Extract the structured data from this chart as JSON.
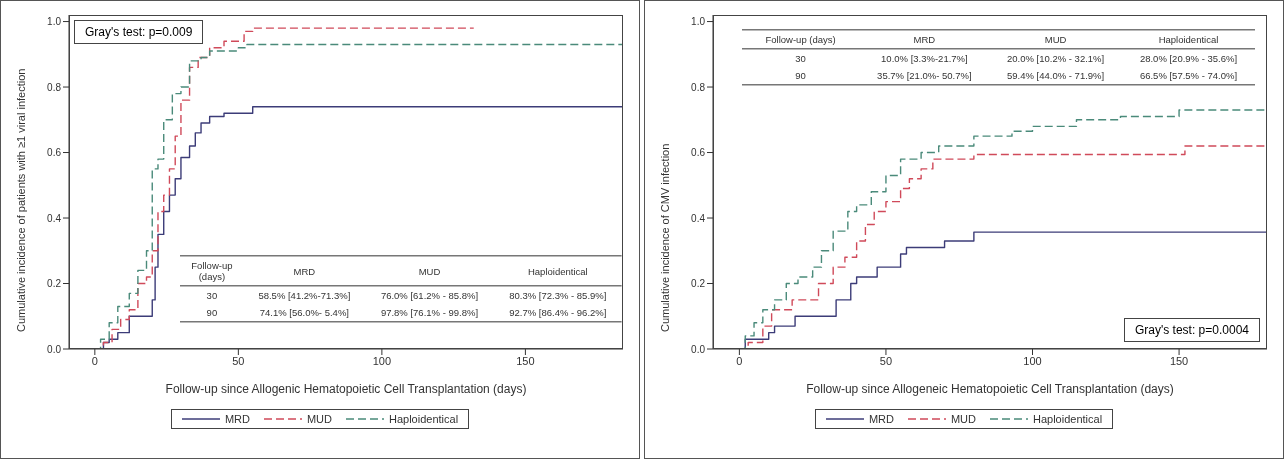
{
  "chart_data": [
    {
      "type": "step",
      "xlabel": "Follow-up since Allogenic Hematopoietic Cell Transplantation (days)",
      "ylabel": "Cumulative incidence of patients with ≥1 viral infection",
      "xlim": [
        -9,
        184
      ],
      "xticks": [
        0,
        50,
        100,
        150
      ],
      "ylim": [
        0,
        1.02
      ],
      "yticks": [
        {
          "value": 0,
          "label": "0.0"
        },
        {
          "value": 0.2,
          "label": "0.2"
        },
        {
          "value": 0.4,
          "label": "0.4"
        },
        {
          "value": 0.6,
          "label": "0.6"
        },
        {
          "value": 0.8,
          "label": "0.8"
        },
        {
          "value": 1,
          "label": "1.0"
        }
      ],
      "legend": "bottom",
      "series": [
        {
          "name": "MRD",
          "color": "#3c3c78",
          "line_style": "solid",
          "x": [
            0,
            3,
            5,
            8,
            12,
            20,
            21,
            22,
            24,
            26,
            28,
            30,
            33,
            35,
            37,
            40,
            45,
            55,
            184
          ],
          "values": [
            0,
            0.02,
            0.03,
            0.05,
            0.1,
            0.15,
            0.25,
            0.35,
            0.42,
            0.47,
            0.52,
            0.585,
            0.62,
            0.66,
            0.69,
            0.71,
            0.72,
            0.74,
            0.74
          ]
        },
        {
          "name": "MUD",
          "color": "#d04a5a",
          "line_style": "dashed",
          "x": [
            0,
            3,
            6,
            9,
            12,
            15,
            18,
            20,
            22,
            24,
            26,
            28,
            30,
            33,
            36,
            40,
            45,
            52,
            55,
            132
          ],
          "values": [
            0,
            0.02,
            0.06,
            0.09,
            0.12,
            0.2,
            0.22,
            0.3,
            0.42,
            0.47,
            0.55,
            0.65,
            0.76,
            0.86,
            0.89,
            0.92,
            0.94,
            0.97,
            0.98,
            0.98
          ]
        },
        {
          "name": "Haploidentical",
          "color": "#4a8a7a",
          "line_style": "dashed",
          "x": [
            0,
            2,
            5,
            8,
            12,
            15,
            18,
            20,
            22,
            24,
            27,
            30,
            33,
            37,
            40,
            50,
            53,
            184
          ],
          "values": [
            0,
            0.03,
            0.08,
            0.13,
            0.17,
            0.24,
            0.3,
            0.55,
            0.58,
            0.7,
            0.78,
            0.8,
            0.88,
            0.89,
            0.91,
            0.92,
            0.93,
            0.93
          ]
        }
      ],
      "annotations": [
        "Gray's test: p=0.009",
        "Follow-up (days)",
        "MRD",
        "MUD",
        "Haploidentical",
        "30",
        "58.5% [41.2%-71.3%]",
        "76.0% [61.2% - 85.8%]",
        "80.3% [72.3% - 85.9%]",
        "90",
        "74.1% [56.0%- 5.4%]",
        "97.8% [76.1% - 99.8%]",
        "92.7% [86.4% - 96.2%]"
      ]
    },
    {
      "type": "step",
      "xlabel": "Follow-up since Allogeneic Hematopoietic Cell Transplantation (days)",
      "ylabel": "Cumulative incidence of CMV infection",
      "xlim": [
        -9,
        180
      ],
      "xticks": [
        0,
        50,
        100,
        150
      ],
      "ylim": [
        0,
        1.02
      ],
      "yticks": [
        {
          "value": 0,
          "label": "0.0"
        },
        {
          "value": 0.2,
          "label": "0.2"
        },
        {
          "value": 0.4,
          "label": "0.4"
        },
        {
          "value": 0.6,
          "label": "0.6"
        },
        {
          "value": 0.8,
          "label": "0.8"
        },
        {
          "value": 1,
          "label": "1.0"
        }
      ],
      "legend": "bottom",
      "series": [
        {
          "name": "MRD",
          "color": "#3c3c78",
          "line_style": "solid",
          "x": [
            0,
            2,
            10,
            12,
            19,
            33,
            38,
            40,
            47,
            55,
            57,
            70,
            80,
            180
          ],
          "values": [
            0,
            0.03,
            0.05,
            0.07,
            0.1,
            0.15,
            0.2,
            0.22,
            0.25,
            0.29,
            0.31,
            0.33,
            0.357,
            0.357
          ]
        },
        {
          "name": "MUD",
          "color": "#d04a5a",
          "line_style": "dashed",
          "x": [
            0,
            3,
            8,
            11,
            18,
            27,
            32,
            36,
            40,
            43,
            46,
            50,
            55,
            58,
            62,
            66,
            80,
            152,
            180
          ],
          "values": [
            0,
            0.02,
            0.07,
            0.12,
            0.15,
            0.2,
            0.25,
            0.28,
            0.33,
            0.38,
            0.42,
            0.45,
            0.49,
            0.52,
            0.55,
            0.58,
            0.594,
            0.62,
            0.62
          ]
        },
        {
          "name": "Haploidentical",
          "color": "#4a8a7a",
          "line_style": "dashed",
          "x": [
            0,
            2,
            5,
            8,
            12,
            16,
            20,
            25,
            28,
            32,
            37,
            40,
            45,
            50,
            55,
            62,
            68,
            80,
            93,
            100,
            115,
            130,
            150,
            180
          ],
          "values": [
            0,
            0.04,
            0.08,
            0.12,
            0.15,
            0.2,
            0.22,
            0.25,
            0.3,
            0.36,
            0.42,
            0.44,
            0.48,
            0.53,
            0.58,
            0.6,
            0.62,
            0.65,
            0.665,
            0.68,
            0.7,
            0.71,
            0.73,
            0.73
          ]
        }
      ],
      "annotations": [
        "Gray's test: p=0.0004",
        "Follow-up (days)",
        "MRD",
        "MUD",
        "Haploidentical",
        "30",
        "10.0% [3.3%-21.7%]",
        "20.0% [10.2% - 32.1%]",
        "28.0% [20.9% - 35.6%]",
        "90",
        "35.7% [21.0%- 50.7%]",
        "59.4% [44.0% - 71.9%]",
        "66.5% [57.5% - 74.0%]"
      ]
    }
  ]
}
